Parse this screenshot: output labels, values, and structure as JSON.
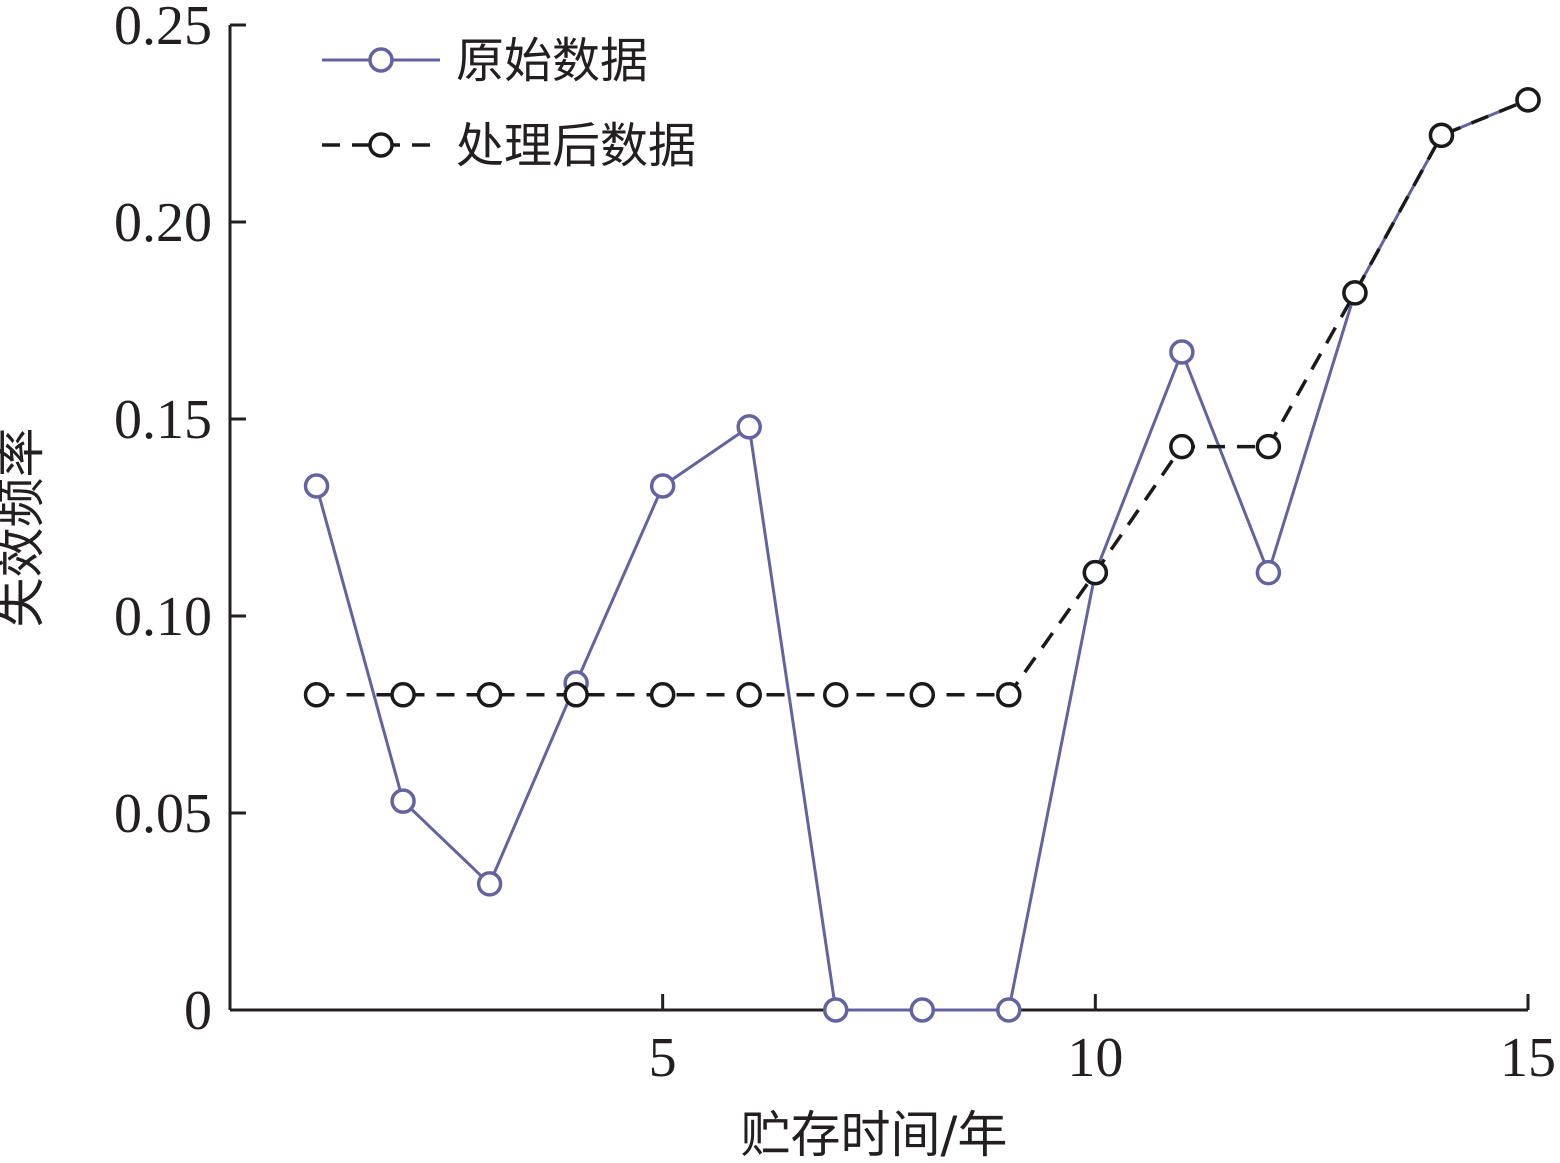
{
  "chart_data": {
    "type": "line",
    "xlabel": "贮存时间/年",
    "ylabel": "失效频率",
    "xlim": [
      0,
      15
    ],
    "ylim": [
      0,
      0.25
    ],
    "x_ticks": [
      5,
      10,
      15
    ],
    "x_tick_labels": [
      "5",
      "10",
      "15"
    ],
    "y_ticks": [
      0,
      0.05,
      0.1,
      0.15,
      0.2,
      0.25
    ],
    "y_tick_labels": [
      "0",
      "0.05",
      "0.10",
      "0.15",
      "0.20",
      "0.25"
    ],
    "grid": false,
    "legend_position": "top-left",
    "x": [
      1,
      2,
      3,
      4,
      5,
      6,
      7,
      8,
      9,
      10,
      11,
      12,
      13,
      14,
      15
    ],
    "series": [
      {
        "name": "原始数据",
        "style": "solid",
        "color": "#6363a2",
        "marker": "circle",
        "values": [
          0.133,
          0.053,
          0.032,
          0.083,
          0.133,
          0.148,
          0,
          0,
          0,
          0.111,
          0.167,
          0.111,
          0.182,
          0.222,
          0.231
        ]
      },
      {
        "name": "处理后数据",
        "style": "dashed",
        "color": "#1a1a1a",
        "marker": "circle",
        "values": [
          0.08,
          0.08,
          0.08,
          0.08,
          0.08,
          0.08,
          0.08,
          0.08,
          0.08,
          0.111,
          0.143,
          0.143,
          0.182,
          0.222,
          0.231
        ]
      }
    ]
  }
}
